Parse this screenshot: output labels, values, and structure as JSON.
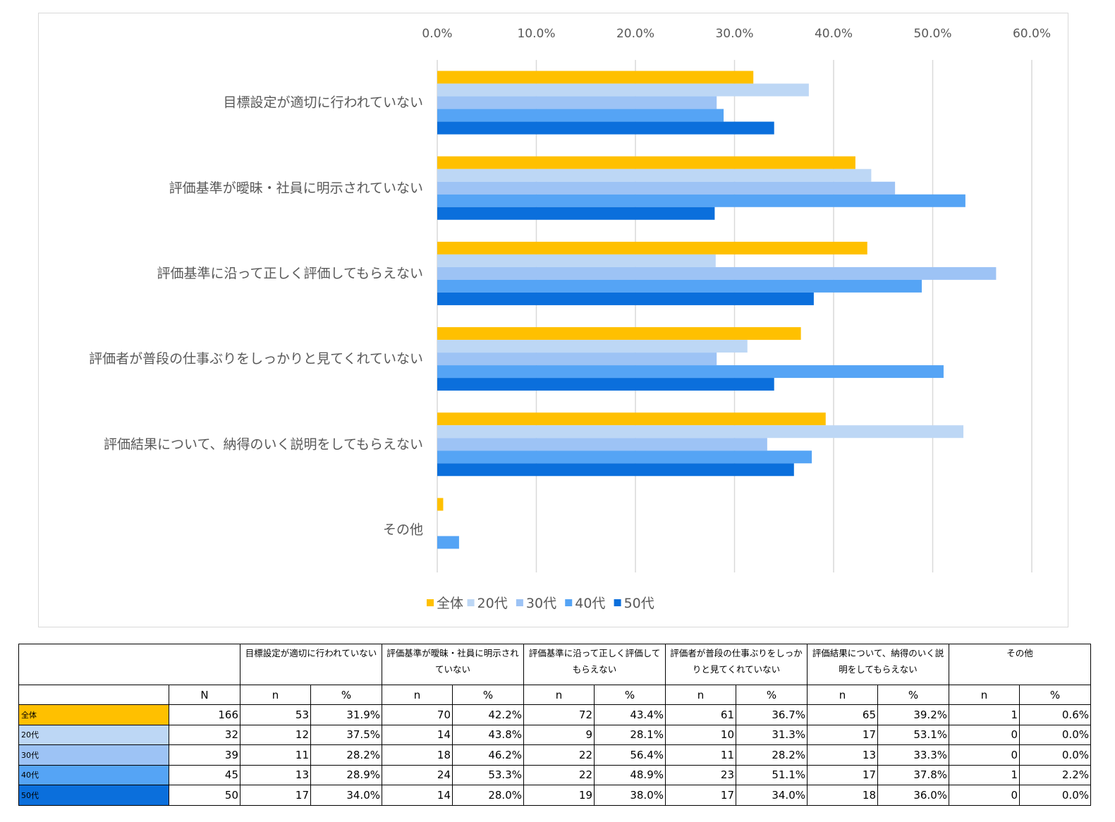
{
  "chart_data": {
    "type": "bar",
    "orientation": "horizontal",
    "categories": [
      "目標設定が適切に行われていない",
      "評価基準が曖昧・社員に明示されていない",
      "評価基準に沿って正しく評価してもらえない",
      "評価者が普段の仕事ぶりをしっかりと見てくれていない",
      "評価結果について、納得のいく説明をしてもらえない",
      "その他"
    ],
    "series": [
      {
        "name": "全体",
        "color": "#ffc000",
        "values": [
          31.9,
          42.2,
          43.4,
          36.7,
          39.2,
          0.6
        ]
      },
      {
        "name": "20代",
        "color": "#bdd7f5",
        "values": [
          37.5,
          43.8,
          28.1,
          31.3,
          53.1,
          0.0
        ]
      },
      {
        "name": "30代",
        "color": "#9dc3f5",
        "values": [
          28.2,
          46.2,
          56.4,
          28.2,
          33.3,
          0.0
        ]
      },
      {
        "name": "40代",
        "color": "#55a4f5",
        "values": [
          28.9,
          53.3,
          48.9,
          51.1,
          37.8,
          2.2
        ]
      },
      {
        "name": "50代",
        "color": "#0b6fdc",
        "values": [
          34.0,
          28.0,
          38.0,
          34.0,
          36.0,
          0.0
        ]
      }
    ],
    "xlim": [
      0,
      60
    ],
    "xticks": [
      "0.0%",
      "10.0%",
      "20.0%",
      "30.0%",
      "40.0%",
      "50.0%",
      "60.0%"
    ],
    "grid": "vertical",
    "axis_position": "top",
    "legend_position": "bottom"
  },
  "table": {
    "header_questions": [
      "目標設定が適切に行われていない",
      "評価基準が曖昧・社員に明示されていない",
      "評価基準に沿って正しく評価してもらえない",
      "評価者が普段の仕事ぶりをしっかりと見てくれていない",
      "評価結果について、納得のいく説明をしてもらえない",
      "その他"
    ],
    "col_N": "N",
    "col_n": "n",
    "col_pct": "%",
    "rows": [
      {
        "label": "全体",
        "color": "#ffc000",
        "N": "166",
        "cells": [
          [
            "53",
            "31.9%"
          ],
          [
            "70",
            "42.2%"
          ],
          [
            "72",
            "43.4%"
          ],
          [
            "61",
            "36.7%"
          ],
          [
            "65",
            "39.2%"
          ],
          [
            "1",
            "0.6%"
          ]
        ]
      },
      {
        "label": "20代",
        "color": "#bdd7f5",
        "N": "32",
        "cells": [
          [
            "12",
            "37.5%"
          ],
          [
            "14",
            "43.8%"
          ],
          [
            "9",
            "28.1%"
          ],
          [
            "10",
            "31.3%"
          ],
          [
            "17",
            "53.1%"
          ],
          [
            "0",
            "0.0%"
          ]
        ]
      },
      {
        "label": "30代",
        "color": "#9dc3f5",
        "N": "39",
        "cells": [
          [
            "11",
            "28.2%"
          ],
          [
            "18",
            "46.2%"
          ],
          [
            "22",
            "56.4%"
          ],
          [
            "11",
            "28.2%"
          ],
          [
            "13",
            "33.3%"
          ],
          [
            "0",
            "0.0%"
          ]
        ]
      },
      {
        "label": "40代",
        "color": "#55a4f5",
        "N": "45",
        "cells": [
          [
            "13",
            "28.9%"
          ],
          [
            "24",
            "53.3%"
          ],
          [
            "22",
            "48.9%"
          ],
          [
            "23",
            "51.1%"
          ],
          [
            "17",
            "37.8%"
          ],
          [
            "1",
            "2.2%"
          ]
        ]
      },
      {
        "label": "50代",
        "color": "#0b6fdc",
        "N": "50",
        "cells": [
          [
            "17",
            "34.0%"
          ],
          [
            "14",
            "28.0%"
          ],
          [
            "19",
            "38.0%"
          ],
          [
            "17",
            "34.0%"
          ],
          [
            "18",
            "36.0%"
          ],
          [
            "0",
            "0.0%"
          ]
        ]
      }
    ]
  }
}
